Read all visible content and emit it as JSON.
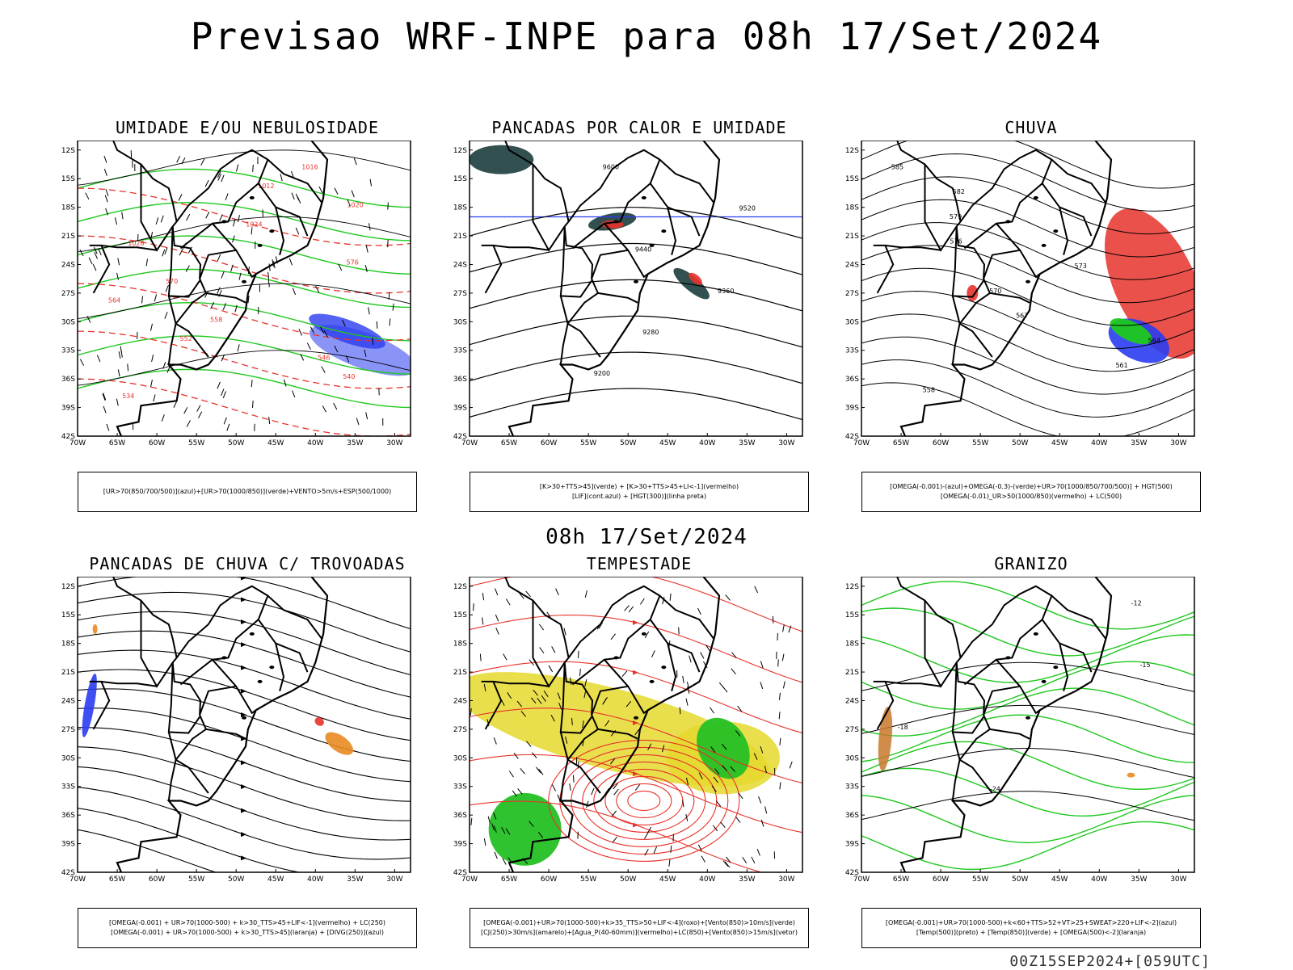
{
  "header": {
    "title": "Previsao WRF-INPE  para 08h 17/Set/2024"
  },
  "middle": {
    "label": "08h 17/Set/2024"
  },
  "footer": {
    "stamp": "00Z15SEP2024+[059UTC]"
  },
  "axes": {
    "lat_labels": [
      "12S",
      "15S",
      "18S",
      "21S",
      "24S",
      "27S",
      "30S",
      "33S",
      "36S",
      "39S",
      "42S"
    ],
    "lon_labels": [
      "70W",
      "65W",
      "60W",
      "55W",
      "50W",
      "45W",
      "40W",
      "35W",
      "30W"
    ]
  },
  "colors": {
    "red": "#e8322b",
    "green": "#1fc81f",
    "blue": "#2a3cf0",
    "yellow": "#e5d92e",
    "orange": "#e98a23",
    "teal": "#1d3d3d"
  },
  "panels": [
    {
      "title": "UMIDADE E/OU NEBULOSIDADE",
      "legend": [
        "[UR>70(850/700/500)](azul)+[UR>70(1000/850)](verde)+VENTO>5m/s+ESP(500/1000)"
      ],
      "labels": [
        "1016",
        "1012",
        "1020",
        "1024",
        "1028",
        "576",
        "570",
        "564",
        "558",
        "552",
        "546",
        "540",
        "534"
      ]
    },
    {
      "title": "PANCADAS POR CALOR E UMIDADE",
      "legend": [
        "[K>30+TTS>45](verde) + [K>30+TTS>45+LI<-1](vermelho)",
        "[LIF](cont.azul) + [HGT(300)](linha preta)"
      ],
      "labels": [
        "9600",
        "9520",
        "9440",
        "9360",
        "9280",
        "9200"
      ]
    },
    {
      "title": "CHUVA",
      "legend": [
        "[OMEGA(-0.001)-(azul)+OMEGA(-0.3)-(verde)+UR>70(1000/850/700/500)] + HGT(500)",
        "[OMEGA(-0.01)_UR>50(1000/850)(vermelho) + LC(500)"
      ],
      "labels": [
        "585",
        "582",
        "579",
        "576",
        "573",
        "570",
        "567",
        "564",
        "561",
        "558"
      ]
    },
    {
      "title": "PANCADAS DE CHUVA C/ TROVOADAS",
      "legend": [
        "[OMEGA(-0.001) + UR>70(1000-500) + k>30_TTS>45+LIF<-1](vermelho) + LC(250)",
        "[OMEGA(-0.001) + UR>70(1000-500) + k>30_TTS>45](laranja) + [DIVG(250)](azul)"
      ],
      "labels": []
    },
    {
      "title": "TEMPESTADE",
      "legend": [
        "[OMEGA(-0.001)+UR>70(1000-500)+k>35_TTS>50+LIF<-4](roxo)+[Vento(850)>10m/s](verde)",
        "[CJ(250)>30m/s](amarelo)+[Agua_P(40-60mm)](vermelho)+LC(850)+[Vento(850)>15m/s](vetor)"
      ],
      "labels": []
    },
    {
      "title": "GRANIZO",
      "legend": [
        "[OMEGA(-0.001)+UR>70(1000-500)+k<60+TTS>52+VT>25+SWEAT>220+LIF<-2](azul)",
        "[Temp(500)](preto) + [Temp(850)](verde) + [OMEGA(500)<-2](laranja)"
      ],
      "labels": [
        "-12",
        "-15",
        "-18",
        "-24"
      ]
    }
  ]
}
